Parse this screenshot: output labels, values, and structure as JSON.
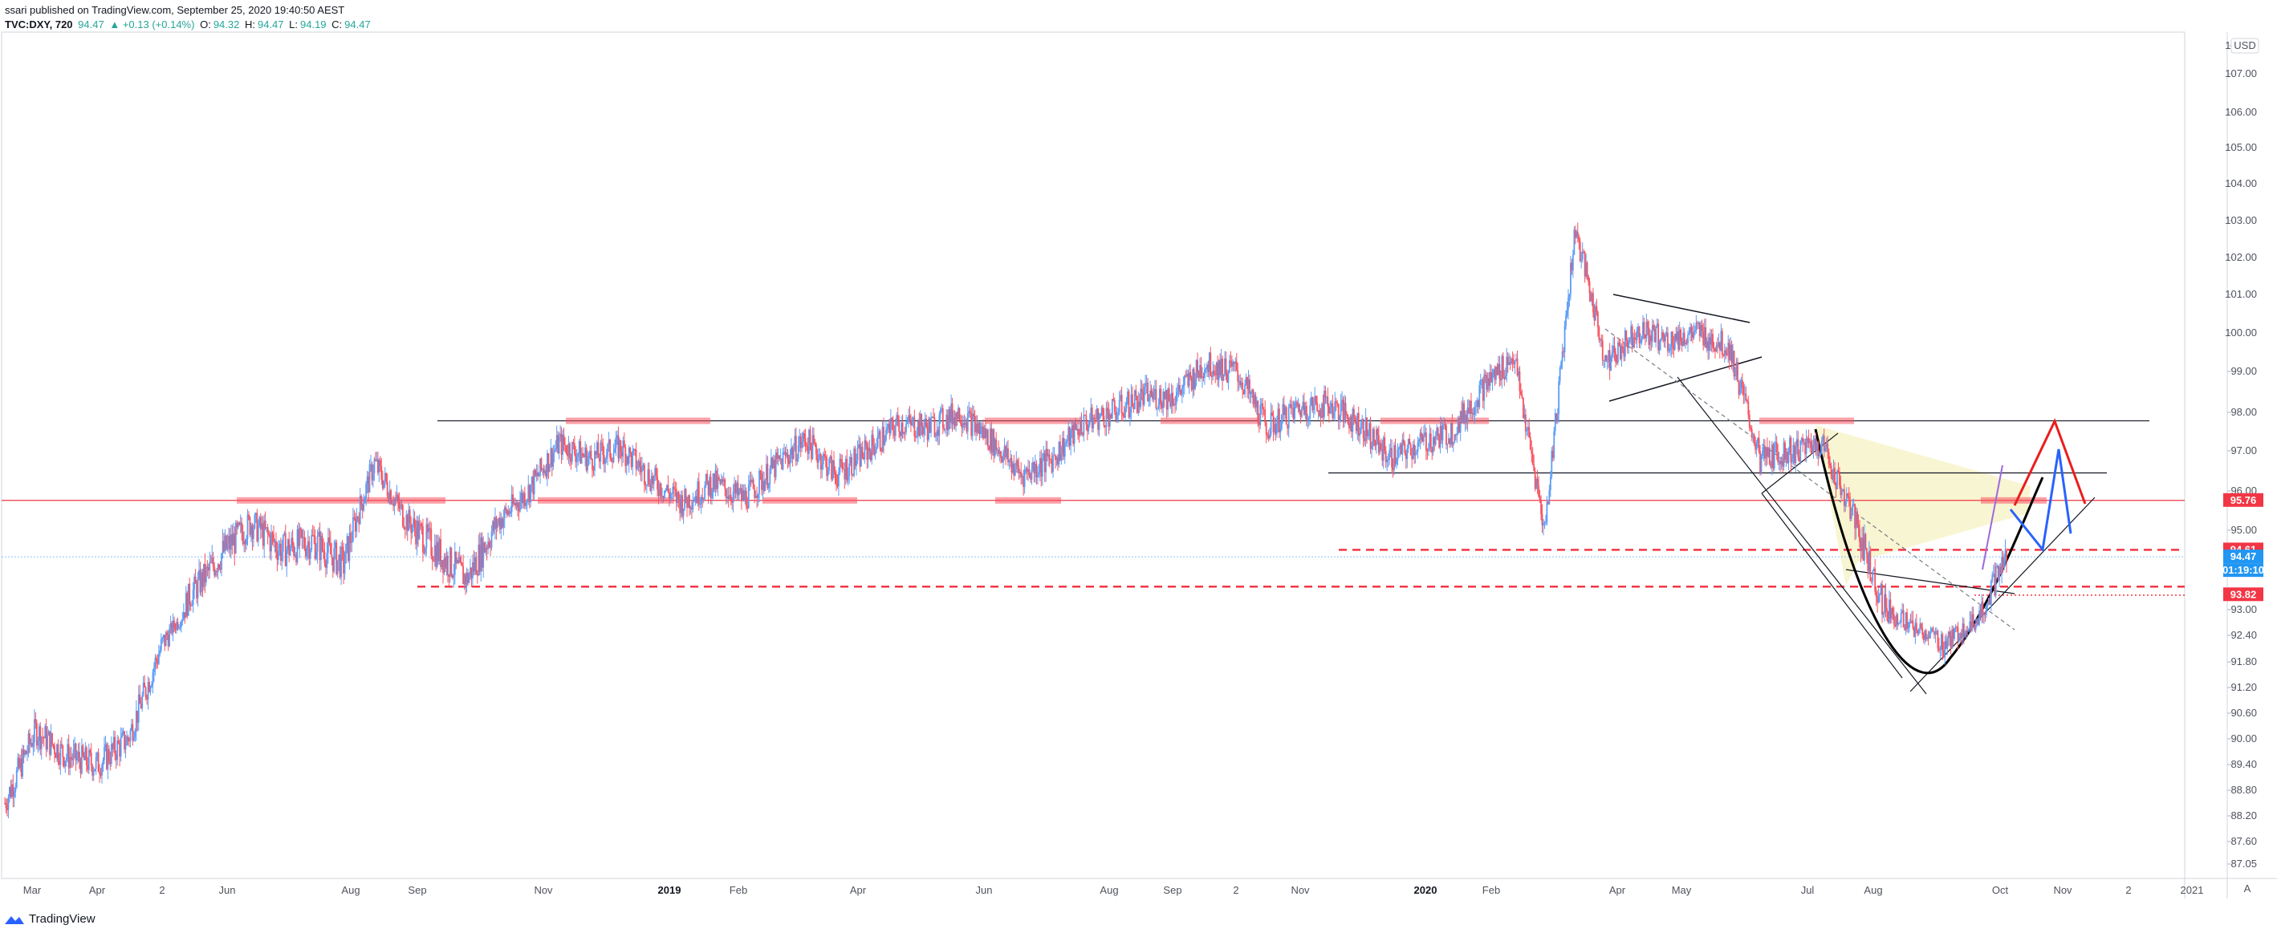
{
  "header": {
    "published": "ssari published on TradingView.com, September 25, 2020 19:40:50 AEST",
    "symbol": "TVC:DXY, 720",
    "last": "94.47",
    "change": "▲ +0.13 (+0.14%)",
    "o_label": "O:",
    "o_value": "94.32",
    "h_label": "H:",
    "h_value": "94.47",
    "l_label": "L:",
    "l_value": "94.19",
    "c_label": "C:",
    "c_value": "94.47"
  },
  "footer": {
    "brand": "TradingView"
  },
  "corner": {
    "currency": "USD",
    "auto": "A"
  },
  "colors": {
    "up": "#26a69a",
    "down": "#ef5350",
    "candle_up": "#5b9cf6",
    "candle_down": "#f7525f",
    "accent_red": "#e91e1e",
    "accent_blue": "#2962ff",
    "highlight": "#f6f3c7"
  },
  "chart_data": {
    "type": "candlestick",
    "title": "TVC:DXY, 720",
    "ylim": [
      86.5,
      108.2
    ],
    "y_ticks": [
      "87.05",
      "87.60",
      "88.20",
      "88.80",
      "89.40",
      "90.00",
      "90.60",
      "91.20",
      "91.80",
      "92.40",
      "93.00",
      "93.60",
      "94.20",
      "95.00",
      "96.00",
      "97.00",
      "98.00",
      "99.00",
      "100.00",
      "101.00",
      "102.00",
      "103.00",
      "104.00",
      "105.00",
      "106.00",
      "107.00",
      "108.00"
    ],
    "x_ticks": [
      {
        "label": "Mar",
        "bold": false
      },
      {
        "label": "Apr",
        "bold": false
      },
      {
        "label": "2",
        "bold": false
      },
      {
        "label": "Jun",
        "bold": false
      },
      {
        "label": "Aug",
        "bold": false
      },
      {
        "label": "Sep",
        "bold": false
      },
      {
        "label": "Nov",
        "bold": false
      },
      {
        "label": "2019",
        "bold": true
      },
      {
        "label": "Feb",
        "bold": false
      },
      {
        "label": "Apr",
        "bold": false
      },
      {
        "label": "Jun",
        "bold": false
      },
      {
        "label": "Aug",
        "bold": false
      },
      {
        "label": "Sep",
        "bold": false
      },
      {
        "label": "2",
        "bold": false
      },
      {
        "label": "Nov",
        "bold": false
      },
      {
        "label": "2020",
        "bold": true
      },
      {
        "label": "Feb",
        "bold": false
      },
      {
        "label": "Apr",
        "bold": false
      },
      {
        "label": "May",
        "bold": false
      },
      {
        "label": "Jul",
        "bold": false
      },
      {
        "label": "Aug",
        "bold": false
      },
      {
        "label": "Oct",
        "bold": false
      },
      {
        "label": "Nov",
        "bold": false
      },
      {
        "label": "2",
        "bold": false
      },
      {
        "label": "2021",
        "bold": false
      }
    ],
    "price_series": [
      [
        "Feb 2018",
        88.5
      ],
      [
        "Mar 2018",
        90.2
      ],
      [
        "Mar 2018",
        89.6
      ],
      [
        "Apr 2018",
        89.4
      ],
      [
        "Apr 2018",
        90.0
      ],
      [
        "May 2018",
        92.0
      ],
      [
        "May 2018",
        93.6
      ],
      [
        "Jun 2018",
        94.5
      ],
      [
        "Jun 2018",
        95.2
      ],
      [
        "Jul 2018",
        94.6
      ],
      [
        "Jul 2018",
        94.8
      ],
      [
        "Aug 2018",
        94.3
      ],
      [
        "Aug 2018",
        96.7
      ],
      [
        "Aug 2018",
        95.3
      ],
      [
        "Sep 2018",
        94.6
      ],
      [
        "Sep 2018",
        94.0
      ],
      [
        "Oct 2018",
        95.2
      ],
      [
        "Oct 2018",
        96.0
      ],
      [
        "Nov 2018",
        97.2
      ],
      [
        "Nov 2018",
        96.8
      ],
      [
        "Dec 2018",
        97.1
      ],
      [
        "Dec 2018",
        96.3
      ],
      [
        "Jan 2019",
        95.7
      ],
      [
        "Jan 2019",
        96.2
      ],
      [
        "Feb 2019",
        95.8
      ],
      [
        "Feb 2019",
        96.6
      ],
      [
        "Mar 2019",
        97.3
      ],
      [
        "Mar 2019",
        96.4
      ],
      [
        "Apr 2019",
        97.0
      ],
      [
        "Apr 2019",
        97.7
      ],
      [
        "May 2019",
        97.6
      ],
      [
        "May 2019",
        98.0
      ],
      [
        "Jun 2019",
        97.3
      ],
      [
        "Jun 2019",
        96.4
      ],
      [
        "Jul 2019",
        96.8
      ],
      [
        "Jul 2019",
        97.7
      ],
      [
        "Aug 2019",
        98.0
      ],
      [
        "Aug 2019",
        98.4
      ],
      [
        "Sep 2019",
        98.4
      ],
      [
        "Sep 2019",
        99.2
      ],
      [
        "Oct 2019",
        99.0
      ],
      [
        "Oct 2019",
        97.6
      ],
      [
        "Nov 2019",
        98.1
      ],
      [
        "Nov 2019",
        98.2
      ],
      [
        "Dec 2019",
        97.7
      ],
      [
        "Dec 2019",
        96.8
      ],
      [
        "Jan 2020",
        97.2
      ],
      [
        "Jan 2020",
        97.5
      ],
      [
        "Feb 2020",
        98.6
      ],
      [
        "Feb 2020",
        99.4
      ],
      [
        "Mar 2020",
        95.0
      ],
      [
        "Mar 2020",
        102.8
      ],
      [
        "Mar 2020",
        99.2
      ],
      [
        "Apr 2020",
        100.1
      ],
      [
        "Apr 2020",
        99.8
      ],
      [
        "May 2020",
        100.0
      ],
      [
        "May 2020",
        99.6
      ],
      [
        "Jun 2020",
        96.8
      ],
      [
        "Jun 2020",
        97.0
      ],
      [
        "Jul 2020",
        97.2
      ],
      [
        "Jul 2020",
        95.4
      ],
      [
        "Aug 2020",
        93.4
      ],
      [
        "Aug 2020",
        92.7
      ],
      [
        "Sep 2020",
        92.2
      ],
      [
        "Sep 2020",
        93.0
      ],
      [
        "Sep 2020",
        94.47
      ]
    ],
    "price_labels": [
      {
        "value": "95.76",
        "color": "#f23645"
      },
      {
        "value": "94.61",
        "color": "#f23645"
      },
      {
        "value": "94.47",
        "color": "#2196f3"
      },
      {
        "value": "01:19:10",
        "color": "#2196f3"
      },
      {
        "value": "93.82",
        "color": "#f23645"
      }
    ],
    "levels": [
      97.78,
      96.45,
      95.76,
      94.61,
      93.82,
      94.47
    ],
    "grid": false
  }
}
